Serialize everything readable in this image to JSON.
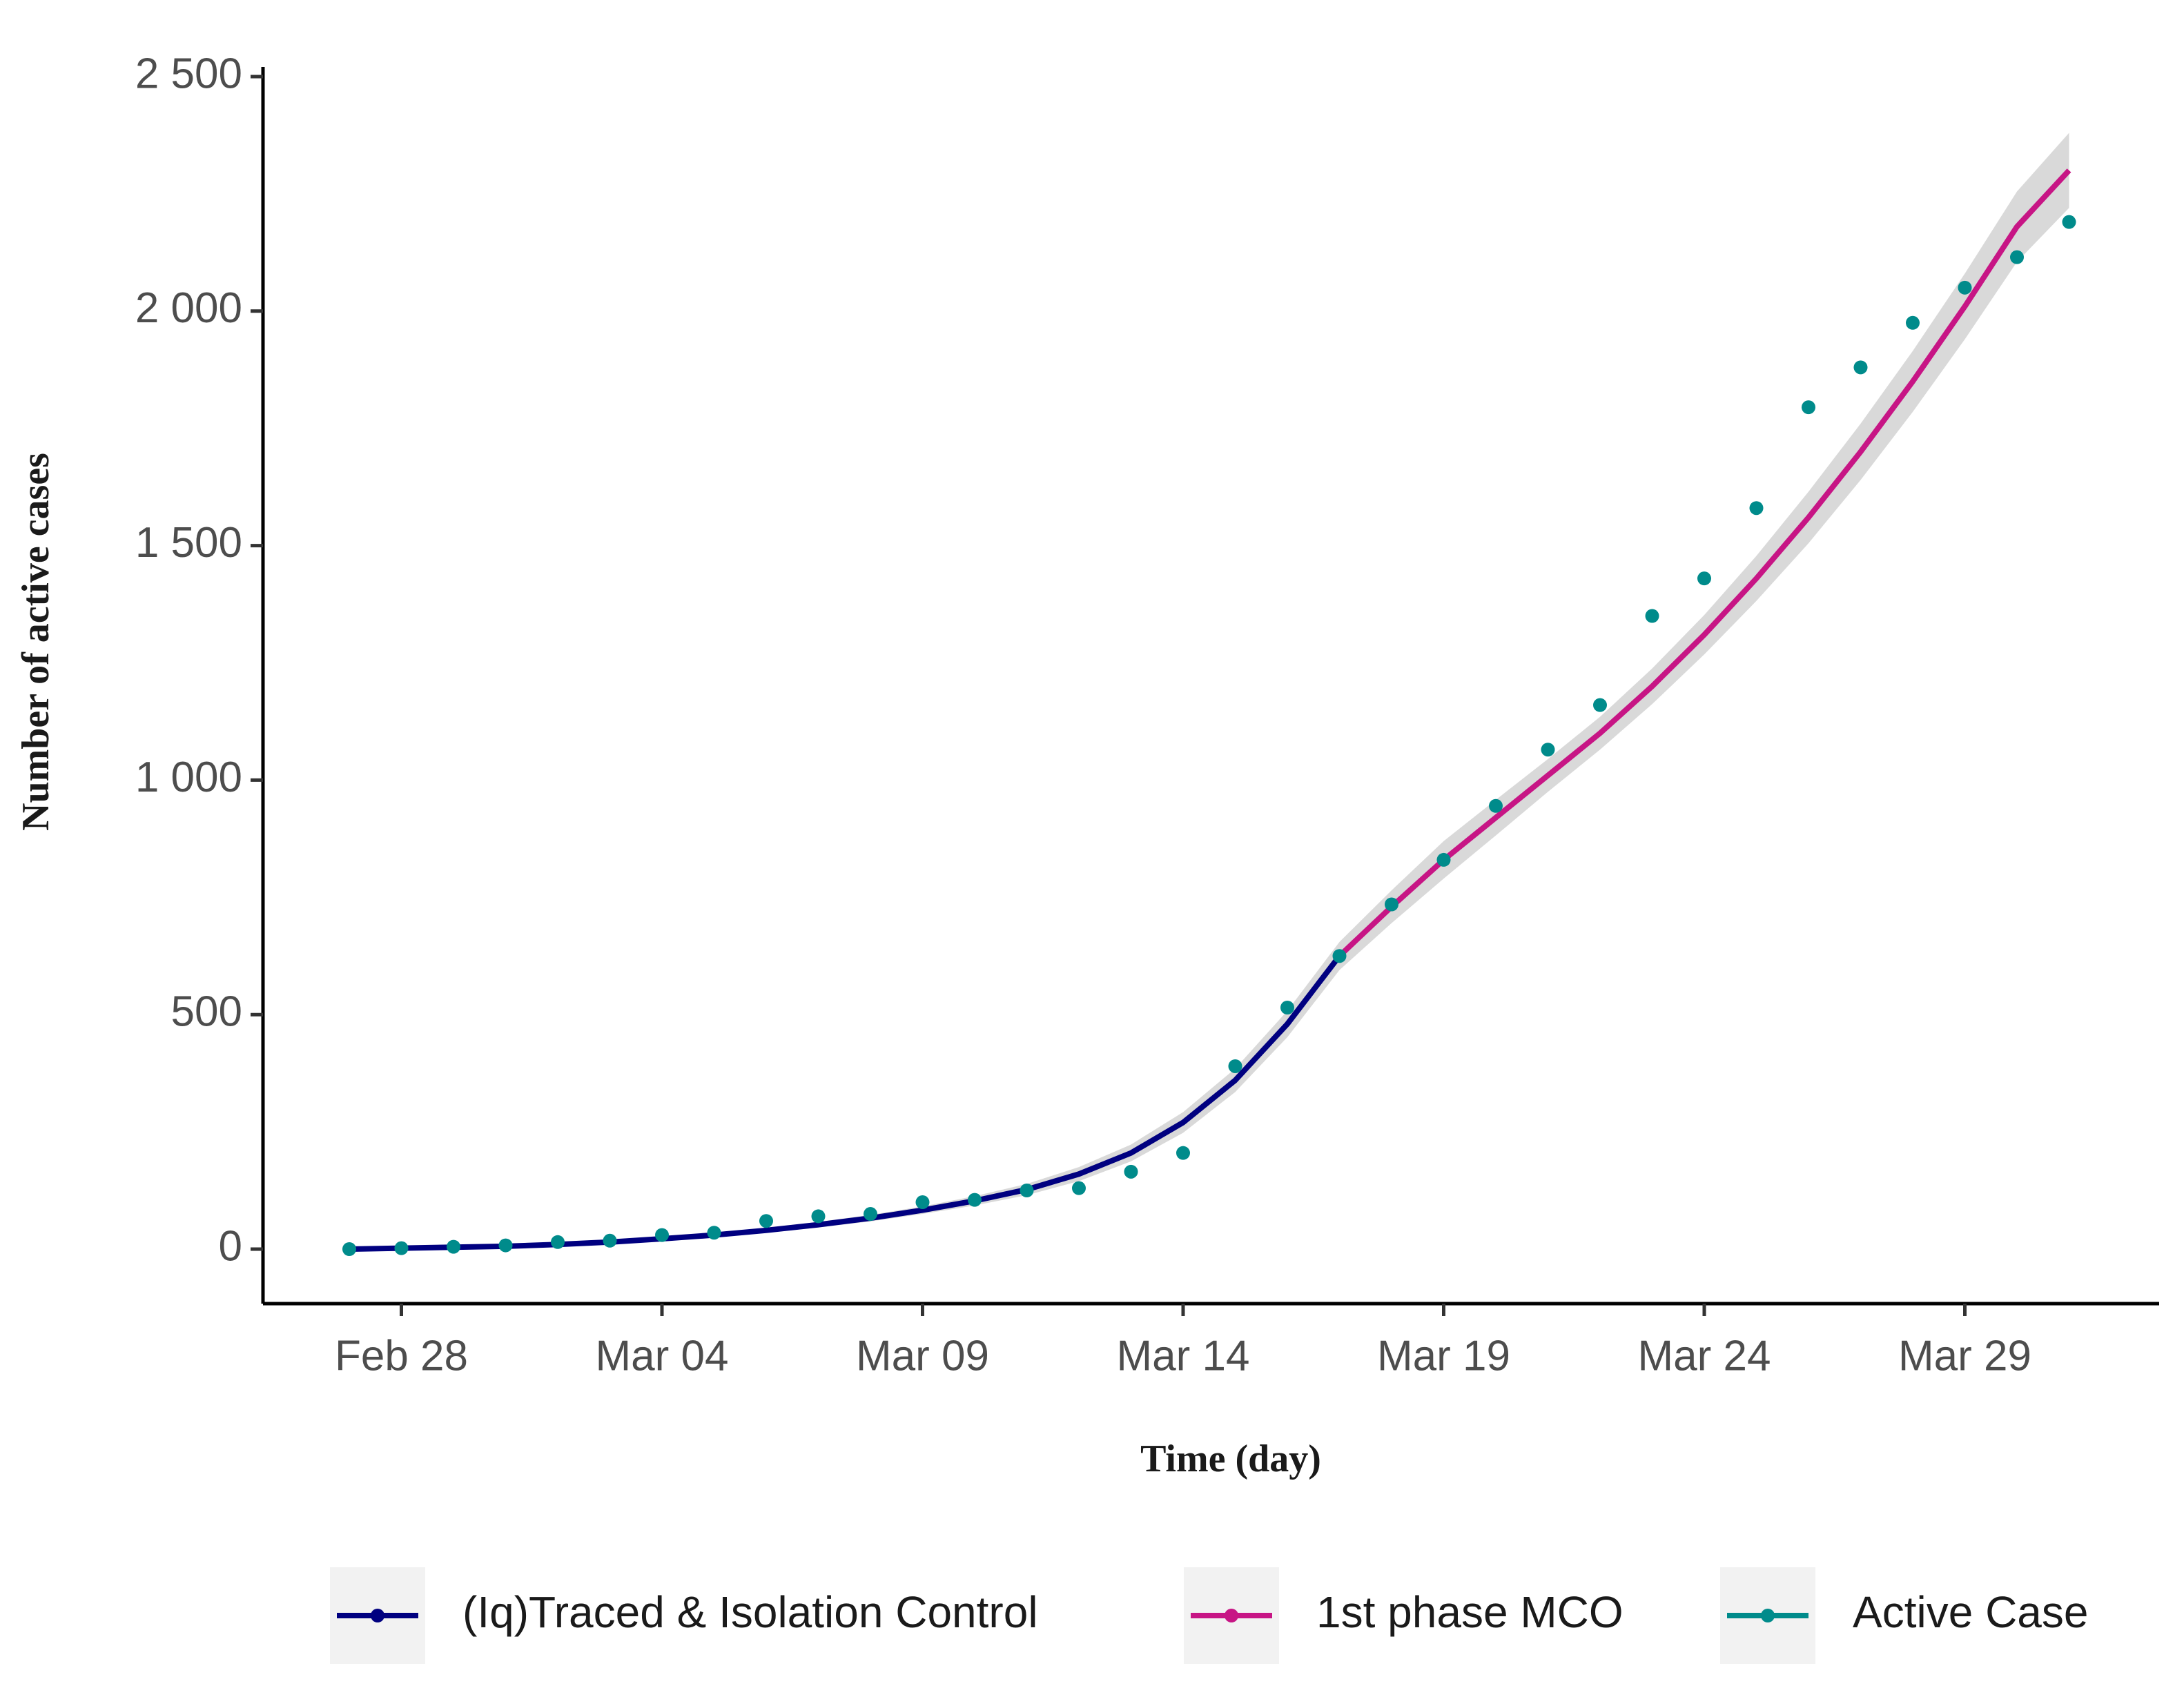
{
  "chart_data": {
    "type": "line",
    "x_label": "Time (day)",
    "y_label": "Number of active cases",
    "categories": [
      "Feb 27",
      "Feb 28",
      "Feb 29",
      "Mar 01",
      "Mar 02",
      "Mar 03",
      "Mar 04",
      "Mar 05",
      "Mar 06",
      "Mar 07",
      "Mar 08",
      "Mar 09",
      "Mar 10",
      "Mar 11",
      "Mar 12",
      "Mar 13",
      "Mar 14",
      "Mar 15",
      "Mar 16",
      "Mar 17",
      "Mar 18",
      "Mar 19",
      "Mar 20",
      "Mar 21",
      "Mar 22",
      "Mar 23",
      "Mar 24",
      "Mar 25",
      "Mar 26",
      "Mar 27",
      "Mar 28",
      "Mar 29",
      "Mar 30",
      "Mar 31"
    ],
    "xticks": [
      "Feb 28",
      "Mar 04",
      "Mar 09",
      "Mar 14",
      "Mar 19",
      "Mar 24",
      "Mar 29"
    ],
    "ylim": [
      0,
      2500
    ],
    "yticks": [
      0,
      500,
      {
        "value": 1000,
        "label": "1 000"
      },
      {
        "value": 1500,
        "label": "1 500"
      },
      {
        "value": 2000,
        "label": "2 000"
      },
      {
        "value": 2500,
        "label": "2 500"
      }
    ],
    "ribbon": {
      "color": "#d9d9d9",
      "lower": [
        -2,
        0,
        2,
        4,
        7,
        12,
        18,
        26,
        35,
        46,
        59,
        75,
        93,
        115,
        145,
        187,
        248,
        335,
        452,
        595,
        695,
        790,
        882,
        975,
        1065,
        1162,
        1268,
        1382,
        1505,
        1640,
        1785,
        1940,
        2105,
        2220
      ],
      "upper": [
        2,
        4,
        6,
        8,
        13,
        18,
        26,
        34,
        45,
        58,
        73,
        91,
        113,
        139,
        175,
        223,
        292,
        385,
        508,
        655,
        765,
        870,
        958,
        1045,
        1135,
        1238,
        1352,
        1478,
        1615,
        1760,
        1915,
        2080,
        2255,
        2380
      ]
    },
    "series": [
      {
        "name": "(Iq)Traced & Isolation Control",
        "color": "#000080",
        "style": "line",
        "values": [
          0,
          2,
          4,
          6,
          10,
          15,
          22,
          30,
          40,
          52,
          66,
          83,
          103,
          127,
          160,
          205,
          270,
          360,
          480,
          625,
          null,
          null,
          null,
          null,
          null,
          null,
          null,
          null,
          null,
          null,
          null,
          null,
          null,
          null
        ]
      },
      {
        "name": "1st phase MCO",
        "color": "#c71585",
        "style": "line",
        "values": [
          null,
          null,
          null,
          null,
          null,
          null,
          null,
          null,
          null,
          null,
          null,
          null,
          null,
          null,
          null,
          null,
          null,
          null,
          null,
          625,
          730,
          830,
          920,
          1010,
          1100,
          1200,
          1310,
          1430,
          1560,
          1700,
          1850,
          2010,
          2180,
          2300
        ]
      },
      {
        "name": "Active Case",
        "color": "#008b8b",
        "style": "points",
        "values": [
          0,
          2,
          5,
          8,
          15,
          18,
          30,
          35,
          60,
          70,
          75,
          100,
          105,
          125,
          130,
          165,
          205,
          390,
          515,
          625,
          735,
          830,
          945,
          1065,
          1160,
          1350,
          1430,
          1580,
          1795,
          1880,
          1975,
          2050,
          2115,
          2190
        ]
      }
    ]
  }
}
